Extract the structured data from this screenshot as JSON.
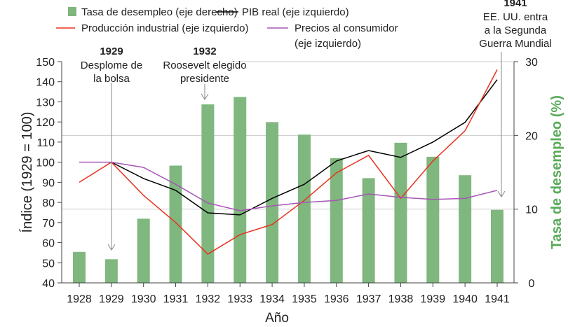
{
  "chart_data": {
    "type": "bar+line",
    "categories": [
      "1928",
      "1929",
      "1930",
      "1931",
      "1932",
      "1933",
      "1934",
      "1935",
      "1936",
      "1937",
      "1938",
      "1939",
      "1940",
      "1941"
    ],
    "xlabel": "Año",
    "ylabel": "Índice (1929 = 100)",
    "y2label": "Tasa de desempleo (%)",
    "ylim": [
      40,
      150
    ],
    "y2lim": [
      0,
      30
    ],
    "yticks": [
      40,
      50,
      60,
      70,
      80,
      90,
      100,
      110,
      120,
      130,
      140,
      150
    ],
    "y2ticks": [
      0,
      10,
      20,
      30
    ],
    "grid": "horizontal at right-axis 10, 20, 30",
    "series": [
      {
        "name": "Tasa de desempleo (eje derecho)",
        "type": "bar",
        "axis": "right",
        "color": "#7fb77e",
        "values": [
          4.2,
          3.2,
          8.7,
          15.9,
          24.2,
          25.2,
          21.8,
          20.1,
          16.9,
          14.2,
          19.0,
          17.1,
          14.6,
          9.9
        ]
      },
      {
        "name": "PIB real (eje izquierdo)",
        "type": "line",
        "axis": "left",
        "color": "#000000",
        "values": [
          null,
          100,
          91.9,
          86,
          74.8,
          73.8,
          82,
          89,
          100.6,
          105.8,
          102.4,
          110,
          119.8,
          141
        ]
      },
      {
        "name": "Producción industrial (eje izquierdo)",
        "type": "line",
        "axis": "left",
        "color": "#e8321e",
        "values": [
          90,
          100,
          83.5,
          70,
          54.3,
          64,
          69,
          81,
          94.7,
          103.4,
          82,
          100.6,
          115.6,
          146
        ]
      },
      {
        "name": "Precios al consumidor (eje izquierdo)",
        "type": "line",
        "axis": "left",
        "color": "#a756b5",
        "values": [
          100,
          100,
          97.4,
          89,
          79.7,
          75.9,
          78.3,
          80,
          81,
          84.2,
          82.5,
          81.5,
          82,
          86
        ]
      }
    ],
    "legend": {
      "position": "top",
      "items": [
        "Tasa de desempleo (eje derecho)",
        "PIB real (eje izquierdo)",
        "Producción industrial (eje izquierdo)",
        "Precios al consumidor",
        "(eje izquierdo)"
      ]
    },
    "annotations": [
      {
        "year": "1929",
        "lines": [
          "Desplome de",
          "la bolsa"
        ]
      },
      {
        "year": "1932",
        "lines": [
          "Roosevelt elegido",
          "presidente"
        ]
      },
      {
        "year": "1941",
        "lines": [
          "EE. UU. entra",
          "a la Segunda",
          "Guerra Mundial"
        ]
      }
    ]
  }
}
